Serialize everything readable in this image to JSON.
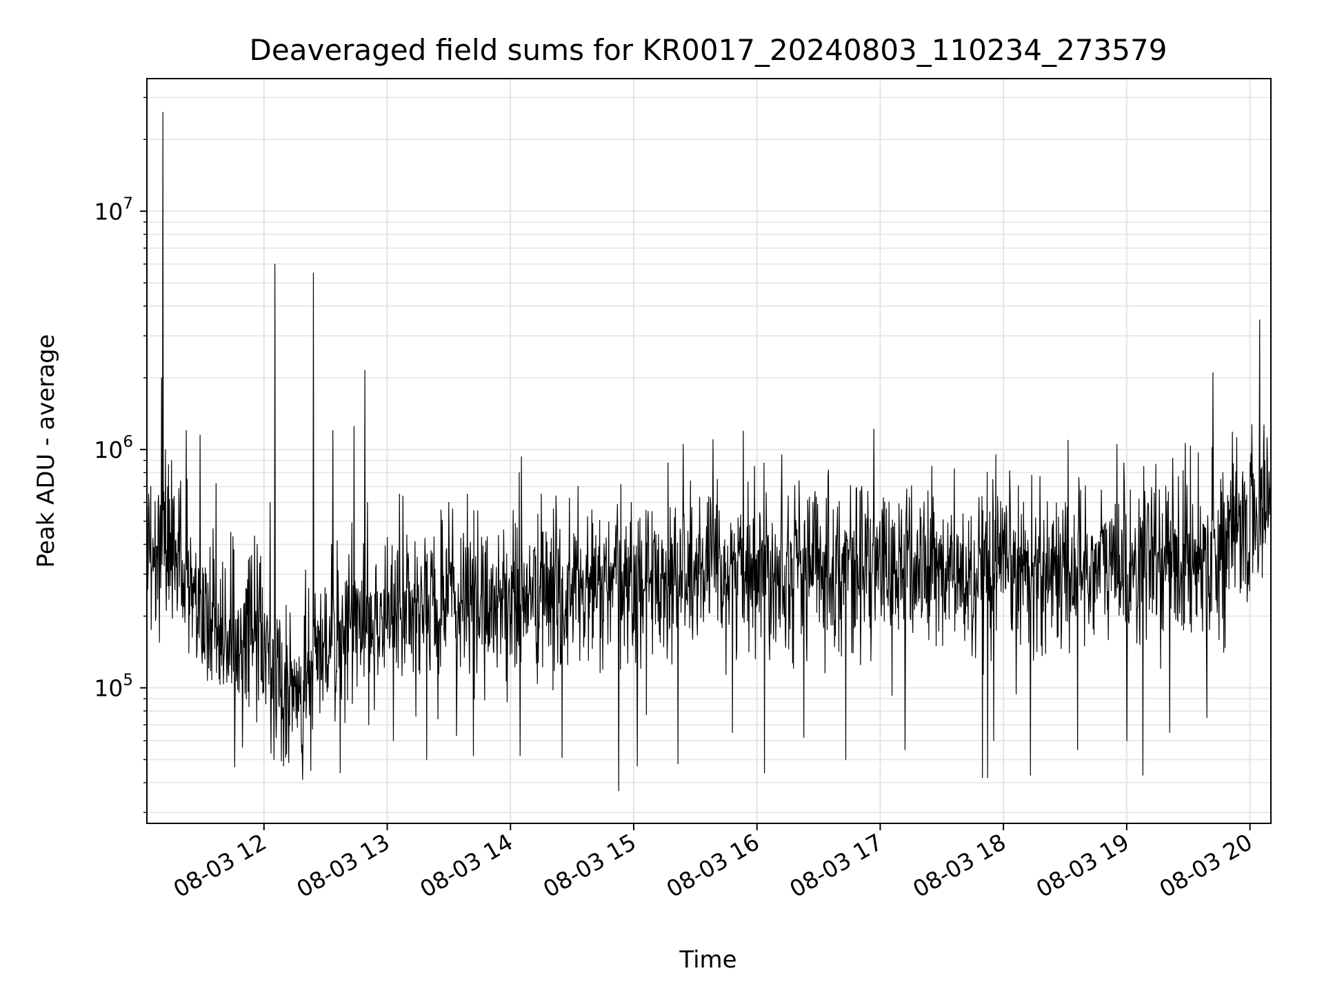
{
  "chart_data": {
    "type": "line",
    "title": "Deaveraged field sums for KR0017_20240803_110234_273579",
    "xlabel": "Time",
    "ylabel": "Peak ADU - average",
    "yscale": "log",
    "x_unit": "hours (time of day, 2024-08-03)",
    "xlim": [
      11.05,
      20.17
    ],
    "ylim": [
      27000,
      36000000
    ],
    "grid": true,
    "line_color": "#000000",
    "x_ticks": [
      {
        "value": 12,
        "label": "08-03 12"
      },
      {
        "value": 13,
        "label": "08-03 13"
      },
      {
        "value": 14,
        "label": "08-03 14"
      },
      {
        "value": 15,
        "label": "08-03 15"
      },
      {
        "value": 16,
        "label": "08-03 16"
      },
      {
        "value": 17,
        "label": "08-03 17"
      },
      {
        "value": 18,
        "label": "08-03 18"
      },
      {
        "value": 19,
        "label": "08-03 19"
      },
      {
        "value": 20,
        "label": "08-03 20"
      }
    ],
    "y_ticks": [
      {
        "value": 100000,
        "base": "10",
        "exp": "5"
      },
      {
        "value": 1000000,
        "base": "10",
        "exp": "6"
      },
      {
        "value": 10000000,
        "base": "10",
        "exp": "7"
      }
    ],
    "baseline": [
      [
        11.05,
        300000
      ],
      [
        11.2,
        380000
      ],
      [
        11.35,
        320000
      ],
      [
        11.5,
        200000
      ],
      [
        11.75,
        160000
      ],
      [
        11.95,
        180000
      ],
      [
        12.1,
        100000
      ],
      [
        12.3,
        90000
      ],
      [
        12.45,
        150000
      ],
      [
        12.7,
        180000
      ],
      [
        12.9,
        200000
      ],
      [
        13.3,
        215000
      ],
      [
        13.8,
        230000
      ],
      [
        14.3,
        240000
      ],
      [
        14.6,
        250000
      ],
      [
        15.0,
        280000
      ],
      [
        15.5,
        300000
      ],
      [
        16.0,
        330000
      ],
      [
        16.5,
        330000
      ],
      [
        17.0,
        320000
      ],
      [
        17.5,
        310000
      ],
      [
        17.8,
        260000
      ],
      [
        17.95,
        300000
      ],
      [
        18.5,
        320000
      ],
      [
        19.0,
        330000
      ],
      [
        19.5,
        350000
      ],
      [
        19.8,
        400000
      ],
      [
        20.1,
        550000
      ],
      [
        20.17,
        600000
      ]
    ],
    "spikes": [
      [
        11.08,
        700000
      ],
      [
        11.13,
        350000
      ],
      [
        11.2,
        1000000
      ],
      [
        11.25,
        900000
      ],
      [
        11.18,
        26000000
      ],
      [
        11.17,
        2000000
      ],
      [
        11.37,
        1200000
      ],
      [
        11.48,
        1150000
      ],
      [
        11.61,
        720000
      ],
      [
        11.73,
        450000
      ],
      [
        11.9,
        360000
      ],
      [
        12.05,
        600000
      ],
      [
        12.09,
        6000000
      ],
      [
        12.4,
        5500000
      ],
      [
        12.55,
        400000
      ],
      [
        12.56,
        1200000
      ],
      [
        12.73,
        1250000
      ],
      [
        12.82,
        2150000
      ],
      [
        12.84,
        600000
      ],
      [
        13.1,
        650000
      ],
      [
        13.5,
        600000
      ],
      [
        13.65,
        650000
      ],
      [
        14.07,
        800000
      ],
      [
        14.25,
        650000
      ],
      [
        14.55,
        700000
      ],
      [
        14.98,
        600000
      ],
      [
        15.28,
        880000
      ],
      [
        15.4,
        1050000
      ],
      [
        15.68,
        750000
      ],
      [
        15.98,
        850000
      ],
      [
        16.2,
        950000
      ],
      [
        16.58,
        820000
      ],
      [
        16.85,
        700000
      ],
      [
        17.42,
        850000
      ],
      [
        17.6,
        830000
      ],
      [
        17.94,
        950000
      ],
      [
        18.23,
        780000
      ],
      [
        18.92,
        1050000
      ],
      [
        19.14,
        850000
      ],
      [
        19.42,
        770000
      ],
      [
        19.7,
        2100000
      ],
      [
        19.78,
        800000
      ],
      [
        20.08,
        3500000
      ],
      [
        20.12,
        900000
      ]
    ],
    "dips": [
      [
        12.08,
        50000
      ],
      [
        12.16,
        47000
      ],
      [
        12.38,
        45000
      ],
      [
        12.62,
        44000
      ],
      [
        12.85,
        70000
      ],
      [
        13.05,
        60000
      ],
      [
        13.32,
        50000
      ],
      [
        13.7,
        52000
      ],
      [
        14.08,
        52000
      ],
      [
        14.42,
        51000
      ],
      [
        14.88,
        37000
      ],
      [
        15.03,
        47000
      ],
      [
        15.36,
        48000
      ],
      [
        15.8,
        65000
      ],
      [
        16.06,
        44000
      ],
      [
        16.38,
        62000
      ],
      [
        16.72,
        50000
      ],
      [
        17.2,
        55000
      ],
      [
        17.83,
        42000
      ],
      [
        17.87,
        42000
      ],
      [
        17.92,
        60000
      ],
      [
        18.22,
        43000
      ],
      [
        18.6,
        55000
      ],
      [
        19.0,
        60000
      ],
      [
        19.13,
        43000
      ],
      [
        19.35,
        65000
      ],
      [
        19.65,
        75000
      ]
    ]
  }
}
